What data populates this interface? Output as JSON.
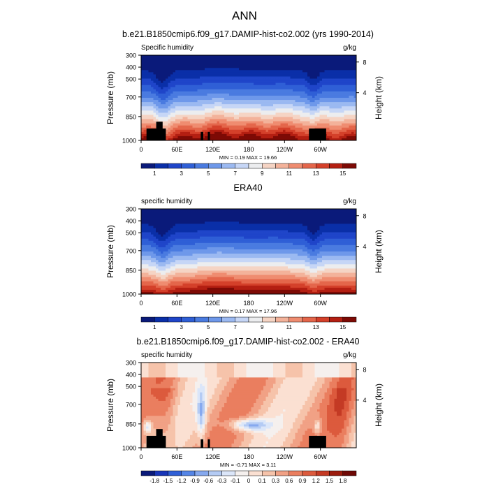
{
  "main_title": "ANN",
  "colors": {
    "mean_scale": [
      "#0a1a7a",
      "#0a2fa8",
      "#1f45c9",
      "#2f5fd6",
      "#4a7be0",
      "#6e98ea",
      "#9bb9f1",
      "#c6d6f6",
      "#ecedef",
      "#f5d4c4",
      "#f3b29a",
      "#ef8c70",
      "#e4664b",
      "#d4402a",
      "#b41f12",
      "#7d0a05"
    ],
    "diff_scale": [
      "#0a1a7a",
      "#1836b8",
      "#2f5fd6",
      "#5585e6",
      "#86a9ef",
      "#b4cbf4",
      "#dbe6f9",
      "#f5f0ee",
      "#fbe0d2",
      "#f6c3aa",
      "#f1a185",
      "#ea7e5f",
      "#dc5a3d",
      "#c43a24",
      "#9c1c0e",
      "#6e0805"
    ]
  },
  "chart_data": [
    {
      "type": "heatmap",
      "id": "model",
      "title": "b.e21.B1850cmip6.f09_g17.DAMIP-hist-co2.002 (yrs 1990-2014)",
      "left_label": "Specific humidity",
      "right_label": "g/kg",
      "ylabel": "Pressure (mb)",
      "ylabel_right": "Height (km)",
      "x_ticks": [
        "0",
        "60E",
        "120E",
        "180",
        "120W",
        "60W"
      ],
      "y_ticks": [
        "300",
        "400",
        "500",
        "700",
        "850",
        "1000"
      ],
      "right_ticks": [
        "8",
        "4"
      ],
      "stats": "MIN =   0.19  MAX =  19.66",
      "colorbar_labels": [
        "1",
        "3",
        "5",
        "7",
        "9",
        "11",
        "13",
        "15"
      ]
    },
    {
      "type": "heatmap",
      "id": "obs",
      "title": "ERA40",
      "left_label": "specific humidity",
      "right_label": "g/kg",
      "ylabel": "Pressure (mb)",
      "ylabel_right": "Height (km)",
      "x_ticks": [
        "0",
        "60E",
        "120E",
        "180",
        "120W",
        "60W"
      ],
      "y_ticks": [
        "300",
        "400",
        "500",
        "700",
        "850",
        "1000"
      ],
      "right_ticks": [
        "8",
        "4"
      ],
      "stats": "MIN =   0.17  MAX =  17.96",
      "colorbar_labels": [
        "1",
        "3",
        "5",
        "7",
        "9",
        "11",
        "13",
        "15"
      ]
    },
    {
      "type": "heatmap",
      "id": "diff",
      "title": "b.e21.B1850cmip6.f09_g17.DAMIP-hist-co2.002 - ERA40",
      "left_label": "specific humidity",
      "right_label": "g/kg",
      "ylabel": "Pressure (mb)",
      "ylabel_right": "Height (km)",
      "x_ticks": [
        "0",
        "60E",
        "120E",
        "180",
        "120W",
        "60W"
      ],
      "y_ticks": [
        "300",
        "400",
        "500",
        "700",
        "850",
        "1000"
      ],
      "right_ticks": [
        "8",
        "4"
      ],
      "stats": "MIN =  -0.71  MAX =   3.11",
      "colorbar_labels": [
        "-1.8",
        "-1.5",
        "-1.2",
        "-0.9",
        "-0.6",
        "-0.3",
        "-0.1",
        "0",
        "0.1",
        "0.3",
        "0.6",
        "0.9",
        "1.2",
        "1.5",
        "1.8"
      ]
    }
  ]
}
